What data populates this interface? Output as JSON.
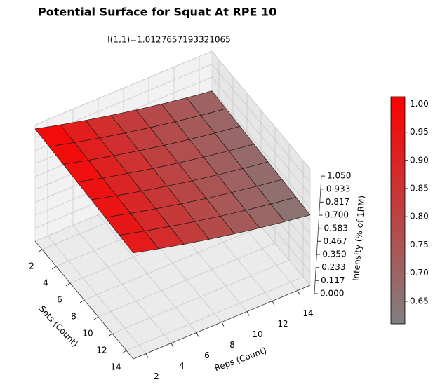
{
  "chart_data": {
    "type": "surface3d",
    "title": "Potential Surface for Squat At RPE 10",
    "subtitle": "I(1,1)=1.0127657193321065",
    "x_label": "Sets (Count)",
    "y_label": "Reps (Count)",
    "z_label": "Intensity (% of 1RM)",
    "x": [
      1,
      3,
      5,
      7,
      9,
      11,
      13,
      15
    ],
    "y": [
      1,
      3,
      5,
      7,
      9,
      11,
      13,
      15
    ],
    "z": [
      [
        1.013,
        0.955,
        0.901,
        0.851,
        0.805,
        0.763,
        0.725,
        0.691
      ],
      [
        1.005,
        0.947,
        0.893,
        0.843,
        0.797,
        0.755,
        0.717,
        0.683
      ],
      [
        0.997,
        0.939,
        0.885,
        0.835,
        0.789,
        0.747,
        0.709,
        0.675
      ],
      [
        0.989,
        0.931,
        0.877,
        0.827,
        0.781,
        0.739,
        0.701,
        0.667
      ],
      [
        0.981,
        0.923,
        0.869,
        0.819,
        0.773,
        0.731,
        0.693,
        0.659
      ],
      [
        0.973,
        0.915,
        0.861,
        0.811,
        0.765,
        0.723,
        0.685,
        0.651
      ],
      [
        0.965,
        0.907,
        0.853,
        0.803,
        0.757,
        0.715,
        0.677,
        0.643
      ],
      [
        0.957,
        0.899,
        0.845,
        0.795,
        0.749,
        0.707,
        0.669,
        0.635
      ]
    ],
    "xlim": [
      1,
      15
    ],
    "ylim": [
      1,
      15
    ],
    "zlim": [
      0,
      1.05
    ],
    "xticks": [
      2,
      4,
      6,
      8,
      10,
      12,
      14
    ],
    "yticks": [
      2,
      4,
      6,
      8,
      10,
      12,
      14
    ],
    "zticks": [
      {
        "value": 0,
        "label": "0.000"
      },
      0.117,
      0.233,
      {
        "value": 0.35,
        "label": "0.350"
      },
      0.467,
      0.583,
      {
        "value": 0.7,
        "label": "0.700"
      },
      0.817,
      0.933,
      {
        "value": 1.05,
        "label": "1.050"
      }
    ],
    "cmap": [
      "#808080",
      "#ff0000"
    ],
    "clim": [
      0.61,
      1.013
    ],
    "cticks": [
      0.65,
      {
        "value": 0.7,
        "label": "0.70"
      },
      0.75,
      {
        "value": 0.8,
        "label": "0.80"
      },
      0.85,
      {
        "value": 0.9,
        "label": "0.90"
      },
      0.95,
      {
        "value": 1,
        "label": "1.00"
      }
    ],
    "grid": true
  }
}
